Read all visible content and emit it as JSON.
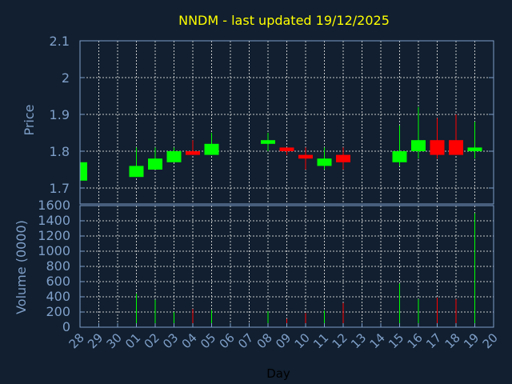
{
  "chart_data": {
    "type": "candlestick",
    "title": "NNDM - last updated 19/12/2025",
    "xlabel": "Day",
    "price_panel": {
      "ylabel": "Price",
      "ylim": [
        1.7,
        2.1
      ],
      "yticks": [
        "1.7",
        "1.8",
        "1.9",
        "2",
        "2.1"
      ],
      "grid": true
    },
    "volume_panel": {
      "ylabel": "Volume (0000)",
      "ylim": [
        0,
        1600
      ],
      "yticks": [
        "0",
        "200",
        "400",
        "600",
        "800",
        "1000",
        "1200",
        "1400",
        "1600"
      ],
      "grid": true
    },
    "x_tick_labels": [
      "28",
      "29",
      "30",
      "01",
      "02",
      "03",
      "04",
      "05",
      "06",
      "07",
      "08",
      "09",
      "10",
      "11",
      "12",
      "13",
      "14",
      "15",
      "16",
      "17",
      "18",
      "19",
      "20"
    ],
    "candles": [
      {
        "day": "28",
        "open": 1.72,
        "high": 1.77,
        "low": 1.72,
        "close": 1.77,
        "volume": 0
      },
      {
        "day": "01",
        "open": 1.73,
        "high": 1.81,
        "low": 1.73,
        "close": 1.76,
        "volume": 440
      },
      {
        "day": "02",
        "open": 1.75,
        "high": 1.81,
        "low": 1.75,
        "close": 1.78,
        "volume": 360
      },
      {
        "day": "03",
        "open": 1.77,
        "high": 1.81,
        "low": 1.77,
        "close": 1.8,
        "volume": 200
      },
      {
        "day": "04",
        "open": 1.8,
        "high": 1.83,
        "low": 1.79,
        "close": 1.79,
        "volume": 240
      },
      {
        "day": "05",
        "open": 1.79,
        "high": 1.85,
        "low": 1.79,
        "close": 1.82,
        "volume": 225
      },
      {
        "day": "08",
        "open": 1.82,
        "high": 1.85,
        "low": 1.8,
        "close": 1.83,
        "volume": 210
      },
      {
        "day": "09",
        "open": 1.81,
        "high": 1.81,
        "low": 1.79,
        "close": 1.8,
        "volume": 110
      },
      {
        "day": "10",
        "open": 1.79,
        "high": 1.81,
        "low": 1.75,
        "close": 1.78,
        "volume": 185
      },
      {
        "day": "11",
        "open": 1.76,
        "high": 1.81,
        "low": 1.75,
        "close": 1.78,
        "volume": 220
      },
      {
        "day": "12",
        "open": 1.79,
        "high": 1.81,
        "low": 1.75,
        "close": 1.77,
        "volume": 320
      },
      {
        "day": "15",
        "open": 1.77,
        "high": 1.87,
        "low": 1.76,
        "close": 1.8,
        "volume": 575
      },
      {
        "day": "16",
        "open": 1.8,
        "high": 1.92,
        "low": 1.78,
        "close": 1.83,
        "volume": 370
      },
      {
        "day": "17",
        "open": 1.83,
        "high": 1.89,
        "low": 1.78,
        "close": 1.79,
        "volume": 390
      },
      {
        "day": "18",
        "open": 1.83,
        "high": 1.9,
        "low": 1.79,
        "close": 1.79,
        "volume": 370
      },
      {
        "day": "19",
        "open": 1.8,
        "high": 1.88,
        "low": 1.78,
        "close": 1.81,
        "volume": 1500
      }
    ],
    "colors": {
      "background": "#111f30",
      "up": "#00ff00",
      "down": "#ff0000",
      "title": "#ffff00",
      "axis": "#7f9fc8",
      "grid": "#c8c8c8"
    }
  }
}
